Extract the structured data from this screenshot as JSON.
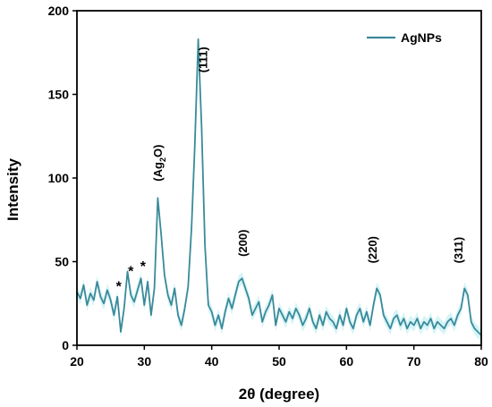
{
  "chart_data": {
    "type": "line",
    "title": "",
    "xlabel": "2θ (degree)",
    "ylabel": "Intensity",
    "xlim": [
      20,
      80
    ],
    "ylim": [
      0,
      200
    ],
    "xticks": [
      20,
      30,
      40,
      50,
      60,
      70,
      80
    ],
    "yticks": [
      0,
      50,
      100,
      150,
      200
    ],
    "legend": {
      "position": "top-right",
      "entries": [
        "AgNPs"
      ]
    },
    "colors": {
      "line": "#3a8a9a",
      "band": "#d6f4f7"
    },
    "series": [
      {
        "name": "AgNPs",
        "x": [
          20,
          20.5,
          21,
          21.5,
          22,
          22.5,
          23,
          23.5,
          24,
          24.5,
          25,
          25.5,
          26,
          26.5,
          27,
          27.5,
          28,
          28.5,
          29,
          29.5,
          30,
          30.5,
          31,
          31.5,
          32,
          32.5,
          33,
          33.5,
          34,
          34.5,
          35,
          35.5,
          36,
          36.5,
          37,
          37.5,
          38,
          38.5,
          39,
          39.5,
          40,
          40.5,
          41,
          41.5,
          42,
          42.5,
          43,
          43.5,
          44,
          44.5,
          45,
          45.5,
          46,
          46.5,
          47,
          47.5,
          48,
          48.5,
          49,
          49.5,
          50,
          50.5,
          51,
          51.5,
          52,
          52.5,
          53,
          53.5,
          54,
          54.5,
          55,
          55.5,
          56,
          56.5,
          57,
          57.5,
          58,
          58.5,
          59,
          59.5,
          60,
          60.5,
          61,
          61.5,
          62,
          62.5,
          63,
          63.5,
          64,
          64.5,
          65,
          65.5,
          66,
          66.5,
          67,
          67.5,
          68,
          68.5,
          69,
          69.5,
          70,
          70.5,
          71,
          71.5,
          72,
          72.5,
          73,
          73.5,
          74,
          74.5,
          75,
          75.5,
          76,
          76.5,
          77,
          77.5,
          78,
          78.5,
          79,
          79.5,
          80
        ],
        "y": [
          32,
          28,
          36,
          24,
          31,
          27,
          38,
          29,
          25,
          33,
          27,
          18,
          29,
          8,
          22,
          44,
          30,
          26,
          33,
          40,
          24,
          38,
          18,
          34,
          88,
          66,
          42,
          30,
          24,
          34,
          18,
          12,
          22,
          35,
          70,
          120,
          183,
          130,
          60,
          24,
          20,
          12,
          18,
          10,
          20,
          28,
          22,
          30,
          38,
          40,
          34,
          28,
          18,
          22,
          26,
          14,
          20,
          24,
          30,
          12,
          22,
          18,
          14,
          20,
          16,
          22,
          18,
          12,
          16,
          22,
          14,
          10,
          18,
          12,
          20,
          16,
          14,
          10,
          18,
          12,
          22,
          14,
          10,
          18,
          22,
          14,
          20,
          12,
          24,
          34,
          30,
          18,
          14,
          10,
          16,
          18,
          12,
          16,
          10,
          14,
          12,
          16,
          10,
          14,
          12,
          16,
          10,
          14,
          12,
          10,
          14,
          16,
          12,
          18,
          22,
          34,
          30,
          14,
          10,
          8,
          6
        ]
      }
    ],
    "annotations": [
      {
        "text": "(111)",
        "x": 39.3,
        "y": 163
      },
      {
        "text": "(Ag2O)",
        "x": 32.6,
        "y": 98
      },
      {
        "text": "(200)",
        "x": 45.2,
        "y": 53
      },
      {
        "text": "(220)",
        "x": 64.5,
        "y": 49
      },
      {
        "text": "(311)",
        "x": 77.2,
        "y": 49
      },
      {
        "text": "*",
        "x": 26.2,
        "y": 35
      },
      {
        "text": "*",
        "x": 28.0,
        "y": 44
      },
      {
        "text": "*",
        "x": 29.8,
        "y": 47
      }
    ]
  }
}
